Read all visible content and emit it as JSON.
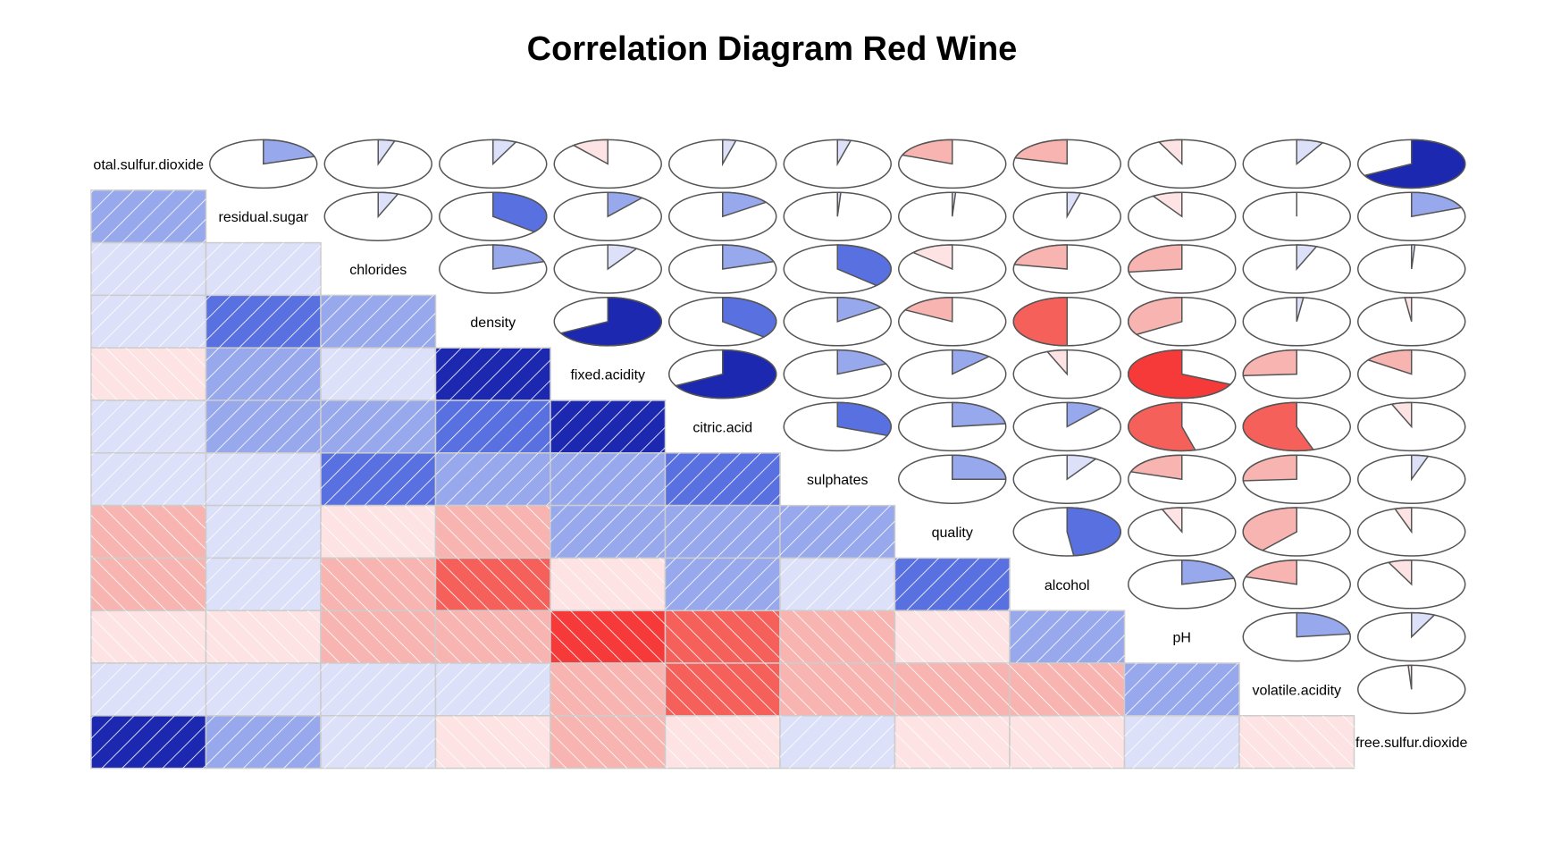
{
  "chart_data": {
    "type": "heatmap",
    "title": "Correlation Diagram Red Wine",
    "lower_panel": "shade",
    "upper_panel": "pie",
    "variables": [
      "total.sulfur.dioxide",
      "residual.sugar",
      "chlorides",
      "density",
      "fixed.acidity",
      "citric.acid",
      "sulphates",
      "quality",
      "alcohol",
      "pH",
      "volatile.acidity",
      "free.sulfur.dioxide"
    ],
    "display_labels": [
      "otal.sulfur.dioxide",
      "residual.sugar",
      "chlorides",
      "density",
      "fixed.acidity",
      "citric.acid",
      "sulphates",
      "quality",
      "alcohol",
      "pH",
      "volatile.acidity",
      "free.sulfur.dioxide"
    ],
    "matrix": [
      [
        1.0,
        0.2,
        0.05,
        0.07,
        -0.11,
        0.04,
        0.04,
        -0.19,
        -0.21,
        -0.07,
        0.08,
        0.67
      ],
      [
        0.2,
        1.0,
        0.06,
        0.36,
        0.11,
        0.15,
        0.01,
        0.01,
        0.04,
        -0.09,
        0.0,
        0.19
      ],
      [
        0.05,
        0.06,
        1.0,
        0.2,
        0.09,
        0.2,
        0.37,
        -0.13,
        -0.22,
        -0.27,
        0.06,
        0.01
      ],
      [
        0.07,
        0.36,
        0.2,
        1.0,
        0.67,
        0.36,
        0.15,
        -0.17,
        -0.5,
        -0.34,
        0.02,
        -0.02
      ],
      [
        -0.11,
        0.11,
        0.09,
        0.67,
        1.0,
        0.67,
        0.18,
        0.12,
        -0.06,
        -0.68,
        -0.26,
        -0.15
      ],
      [
        0.04,
        0.15,
        0.2,
        0.36,
        0.67,
        1.0,
        0.31,
        0.23,
        0.11,
        -0.54,
        -0.55,
        -0.06
      ],
      [
        0.04,
        0.01,
        0.37,
        0.15,
        0.18,
        0.31,
        1.0,
        0.25,
        0.09,
        -0.2,
        -0.26,
        0.05
      ],
      [
        -0.19,
        0.01,
        -0.13,
        -0.17,
        0.12,
        0.23,
        0.25,
        1.0,
        0.48,
        -0.06,
        -0.39,
        -0.05
      ],
      [
        -0.21,
        0.04,
        -0.22,
        -0.5,
        -0.06,
        0.11,
        0.09,
        0.48,
        1.0,
        0.21,
        -0.2,
        -0.07
      ],
      [
        -0.07,
        -0.09,
        -0.27,
        -0.34,
        -0.68,
        -0.54,
        -0.2,
        -0.06,
        0.21,
        1.0,
        0.23,
        0.07
      ],
      [
        0.08,
        0.0,
        0.06,
        0.02,
        -0.26,
        -0.55,
        -0.26,
        -0.39,
        -0.2,
        0.23,
        1.0,
        -0.01
      ],
      [
        0.67,
        0.19,
        0.01,
        -0.02,
        -0.15,
        -0.06,
        0.05,
        -0.05,
        -0.07,
        0.07,
        -0.01,
        1.0
      ]
    ],
    "colors": {
      "strong_positive": "#1c28b0",
      "positive": "#5870e0",
      "weak_positive": "#97a8ec",
      "very_weak_positive": "#dce0f8",
      "very_weak_negative": "#fde3e3",
      "weak_negative": "#f8b4b0",
      "negative": "#f6605a",
      "strong_negative": "#f63a3a",
      "cell_border": "#cccccc",
      "pie_outline": "#555555"
    }
  }
}
